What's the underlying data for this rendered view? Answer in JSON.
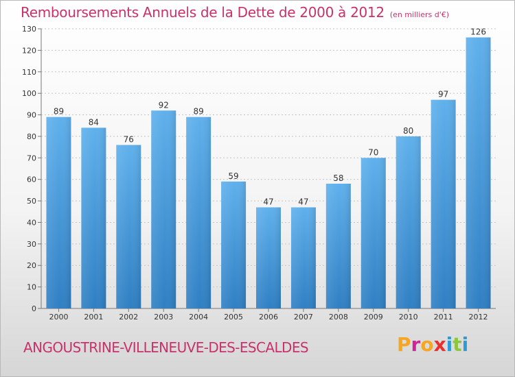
{
  "header": {
    "title": "Remboursements Annuels de la Dette de 2000 à 2012",
    "subtitle": "(en milliers d'€)"
  },
  "footer": {
    "commune": "ANGOUSTRINE-VILLENEUVE-DES-ESCALDES",
    "brand": "Proxiti",
    "brand_colors": [
      "#f5a623",
      "#d0249a",
      "#f5a623",
      "#e8312f",
      "#2e9bd6",
      "#8cc63f",
      "#2e9bd6"
    ]
  },
  "chart_data": {
    "type": "bar",
    "categories": [
      "2000",
      "2001",
      "2002",
      "2003",
      "2004",
      "2005",
      "2006",
      "2007",
      "2008",
      "2009",
      "2010",
      "2011",
      "2012"
    ],
    "values": [
      89,
      84,
      76,
      92,
      89,
      59,
      47,
      47,
      58,
      70,
      80,
      97,
      126
    ],
    "data_labels": [
      "89",
      "84",
      "76",
      "92",
      "89",
      "59",
      "47",
      "47",
      "58",
      "70",
      "80",
      "97",
      "126"
    ],
    "ylim": [
      0,
      130
    ],
    "yticks": [
      "0",
      "10",
      "20",
      "30",
      "40",
      "50",
      "60",
      "70",
      "80",
      "90",
      "100",
      "110",
      "120",
      "130"
    ],
    "grid": "horizontal dashed",
    "bar_color": "#3e8fd0"
  }
}
